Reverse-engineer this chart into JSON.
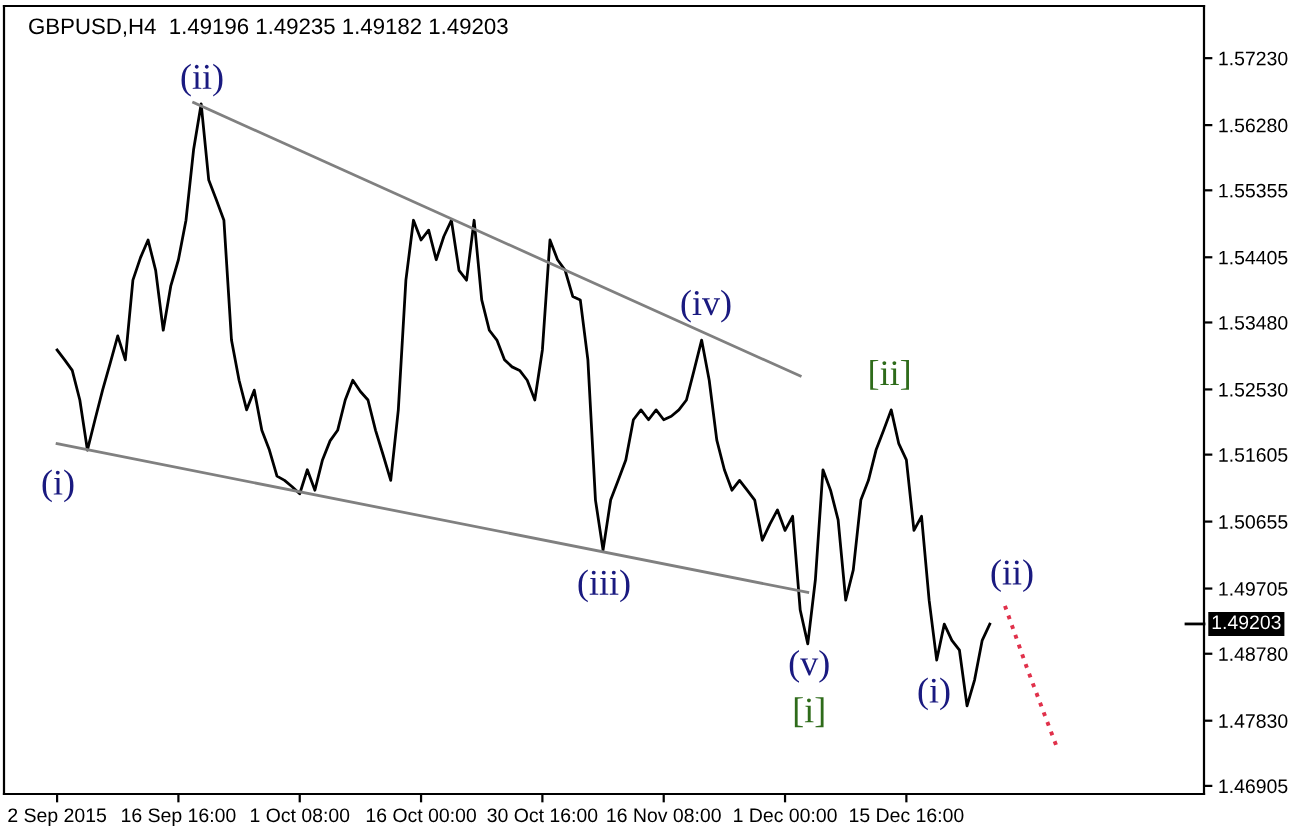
{
  "chart_data": {
    "type": "line",
    "title": "GBPUSD,H4  1.49196 1.49235 1.49182 1.49203",
    "categories": [
      "2 Sep 2015",
      null,
      null,
      null,
      null,
      null,
      null,
      null,
      null,
      null,
      null,
      null,
      null,
      null,
      null,
      null,
      "16 Sep 16:00",
      null,
      null,
      null,
      null,
      null,
      null,
      null,
      null,
      null,
      null,
      null,
      null,
      null,
      null,
      null,
      "1 Oct 08:00",
      null,
      null,
      null,
      null,
      null,
      null,
      null,
      null,
      null,
      null,
      null,
      null,
      null,
      null,
      null,
      "16 Oct 00:00",
      null,
      null,
      null,
      null,
      null,
      null,
      null,
      null,
      null,
      null,
      null,
      null,
      null,
      null,
      null,
      "30 Oct 16:00",
      null,
      null,
      null,
      null,
      null,
      null,
      null,
      null,
      null,
      null,
      null,
      null,
      null,
      null,
      null,
      "16 Nov 08:00",
      null,
      null,
      null,
      null,
      null,
      null,
      null,
      null,
      null,
      null,
      null,
      null,
      null,
      null,
      null,
      "1 Dec 00:00",
      null,
      null,
      null,
      null,
      null,
      null,
      null,
      null,
      null,
      null,
      null,
      null,
      null,
      null,
      null,
      "15 Dec 16:00",
      null,
      null,
      null,
      null,
      null,
      null,
      null,
      null,
      null,
      null,
      null,
      null,
      null,
      null,
      null,
      null,
      null,
      null,
      null,
      null,
      null,
      null,
      null,
      null,
      null,
      null,
      null,
      null,
      null,
      null,
      null,
      null,
      null,
      null,
      null,
      null,
      null,
      null,
      null
    ],
    "ylim": [
      1.4679,
      1.5797
    ],
    "yticks": [
      1.46905,
      {
        "value": 1.4783,
        "label": "1.47830"
      },
      {
        "value": 1.4878,
        "label": "1.48780"
      },
      1.49705,
      1.50655,
      1.51605,
      {
        "value": 1.5253,
        "label": "1.52530"
      },
      {
        "value": 1.5348,
        "label": "1.53480"
      },
      1.54405,
      1.55355,
      {
        "value": 1.5628,
        "label": "1.56280"
      },
      {
        "value": 1.5723,
        "label": "1.57230"
      }
    ],
    "grid": false,
    "legend": false,
    "marker": "none",
    "series": [
      {
        "color": "#000000",
        "values": [
          1.5309,
          1.5295,
          1.528,
          1.5238,
          1.5167,
          1.521,
          1.5252,
          1.529,
          1.5329,
          1.5295,
          1.5408,
          1.544,
          1.5465,
          1.5422,
          1.5337,
          1.54,
          1.5437,
          1.5493,
          1.5593,
          1.5658,
          1.555,
          1.5522,
          1.5493,
          1.5323,
          1.5266,
          1.5224,
          1.5252,
          1.5195,
          1.5167,
          1.513,
          1.5124,
          1.5115,
          1.5105,
          1.5139,
          1.511,
          1.5153,
          1.518,
          1.5195,
          1.5238,
          1.5266,
          1.525,
          1.5238,
          1.5195,
          1.516,
          1.5124,
          1.5224,
          1.5408,
          1.5493,
          1.5465,
          1.5479,
          1.5437,
          1.547,
          1.5493,
          1.5422,
          1.5408,
          1.5493,
          1.538,
          1.5337,
          1.5323,
          1.5295,
          1.5285,
          1.528,
          1.5266,
          1.5238,
          1.5309,
          1.5465,
          1.5437,
          1.5422,
          1.5385,
          1.538,
          1.5295,
          1.5096,
          1.5025,
          1.5096,
          1.5124,
          1.5153,
          1.521,
          1.5224,
          1.521,
          1.5224,
          1.521,
          1.5215,
          1.5224,
          1.5238,
          1.528,
          1.5323,
          1.5266,
          1.5181,
          1.5139,
          1.511,
          1.5124,
          1.511,
          1.5096,
          1.5039,
          1.5062,
          1.5082,
          1.5053,
          1.5073,
          1.494,
          1.4892,
          1.4983,
          1.5139,
          1.511,
          1.5068,
          1.4954,
          1.4997,
          1.5096,
          1.5124,
          1.5167,
          1.5195,
          1.5224,
          1.5176,
          1.5153,
          1.5053,
          1.5073,
          1.4954,
          1.4869,
          1.492,
          1.4897,
          1.4883,
          1.4804,
          1.4841,
          1.4897,
          1.492,
          null,
          null,
          null,
          null,
          null,
          null,
          null,
          null,
          null,
          null,
          null,
          null,
          null,
          null,
          null,
          null,
          null,
          null,
          null,
          null,
          null,
          null,
          null,
          null,
          null,
          null,
          null,
          null
        ]
      },
      {
        "color": "#808080",
        "values": [
          null,
          null,
          null,
          null,
          null,
          null,
          null,
          null,
          null,
          null,
          null,
          null,
          null,
          null,
          null,
          null,
          null,
          null,
          1.566,
          null,
          null,
          null,
          null,
          null,
          null,
          null,
          null,
          null,
          null,
          null,
          null,
          null,
          null,
          null,
          null,
          null,
          null,
          null,
          null,
          null,
          null,
          null,
          null,
          null,
          null,
          null,
          null,
          null,
          null,
          null,
          null,
          null,
          null,
          null,
          null,
          null,
          null,
          null,
          null,
          null,
          null,
          null,
          null,
          null,
          null,
          null,
          null,
          null,
          null,
          null,
          null,
          null,
          null,
          null,
          null,
          null,
          null,
          null,
          null,
          null,
          null,
          null,
          null,
          null,
          null,
          null,
          null,
          null,
          null,
          null,
          null,
          null,
          null,
          null,
          null,
          null,
          null,
          null,
          1.5272,
          null,
          null,
          null,
          null,
          null,
          null,
          null,
          null,
          null,
          null,
          null,
          null,
          null,
          null,
          null,
          null,
          null,
          null,
          null,
          null,
          null,
          null,
          null,
          null,
          null,
          null,
          null,
          null,
          null,
          null,
          null,
          null,
          null,
          null,
          null,
          null,
          null,
          null,
          null,
          null,
          null,
          null,
          null,
          null,
          null,
          null,
          null,
          null,
          null,
          null,
          null,
          null,
          null
        ]
      },
      {
        "color": "#808080",
        "values": [
          1.5176,
          null,
          null,
          null,
          null,
          null,
          null,
          null,
          null,
          null,
          null,
          null,
          null,
          null,
          null,
          null,
          null,
          null,
          null,
          null,
          null,
          null,
          null,
          null,
          null,
          null,
          null,
          null,
          null,
          null,
          null,
          null,
          null,
          null,
          null,
          null,
          null,
          null,
          null,
          null,
          null,
          null,
          null,
          null,
          null,
          null,
          null,
          null,
          null,
          null,
          null,
          null,
          null,
          null,
          null,
          null,
          null,
          null,
          null,
          null,
          null,
          null,
          null,
          null,
          null,
          null,
          null,
          null,
          null,
          null,
          null,
          null,
          null,
          null,
          null,
          null,
          null,
          null,
          null,
          null,
          null,
          null,
          null,
          null,
          null,
          null,
          null,
          null,
          null,
          null,
          null,
          null,
          null,
          null,
          null,
          null,
          null,
          null,
          null,
          1.4965,
          null,
          null,
          null,
          null,
          null,
          null,
          null,
          null,
          null,
          null,
          null,
          null,
          null,
          null,
          null,
          null,
          null,
          null,
          null,
          null,
          null,
          null,
          null,
          null,
          null,
          null,
          null,
          null,
          null,
          null,
          null,
          null,
          null,
          null,
          null,
          null,
          null,
          null,
          null,
          null,
          null,
          null,
          null,
          null,
          null,
          null,
          null,
          null,
          null,
          null,
          null,
          null
        ]
      },
      {
        "color": "#e0304a",
        "line_style": "dotted",
        "values": [
          null,
          null,
          null,
          null,
          null,
          null,
          null,
          null,
          null,
          null,
          null,
          null,
          null,
          null,
          null,
          null,
          null,
          null,
          null,
          null,
          null,
          null,
          null,
          null,
          null,
          null,
          null,
          null,
          null,
          null,
          null,
          null,
          null,
          null,
          null,
          null,
          null,
          null,
          null,
          null,
          null,
          null,
          null,
          null,
          null,
          null,
          null,
          null,
          null,
          null,
          null,
          null,
          null,
          null,
          null,
          null,
          null,
          null,
          null,
          null,
          null,
          null,
          null,
          null,
          null,
          null,
          null,
          null,
          null,
          null,
          null,
          null,
          null,
          null,
          null,
          null,
          null,
          null,
          null,
          null,
          null,
          null,
          null,
          null,
          null,
          null,
          null,
          null,
          null,
          null,
          null,
          null,
          null,
          null,
          null,
          null,
          null,
          null,
          null,
          null,
          null,
          null,
          null,
          null,
          null,
          null,
          null,
          null,
          null,
          null,
          null,
          null,
          null,
          null,
          null,
          null,
          null,
          null,
          null,
          null,
          null,
          null,
          null,
          null,
          null,
          1.4946,
          null,
          null,
          1.4855,
          null,
          null,
          null,
          1.4741,
          null,
          null,
          null,
          null,
          null,
          null,
          null,
          null,
          null,
          null,
          null,
          null,
          null,
          null,
          null,
          null,
          null,
          null,
          null
        ]
      }
    ],
    "annotations": [
      "(ii)",
      "(i)",
      "(iii)",
      "(iv)",
      "[ii]",
      "(v)",
      "[i]",
      "(i)",
      "(ii)",
      "1.49203"
    ]
  }
}
